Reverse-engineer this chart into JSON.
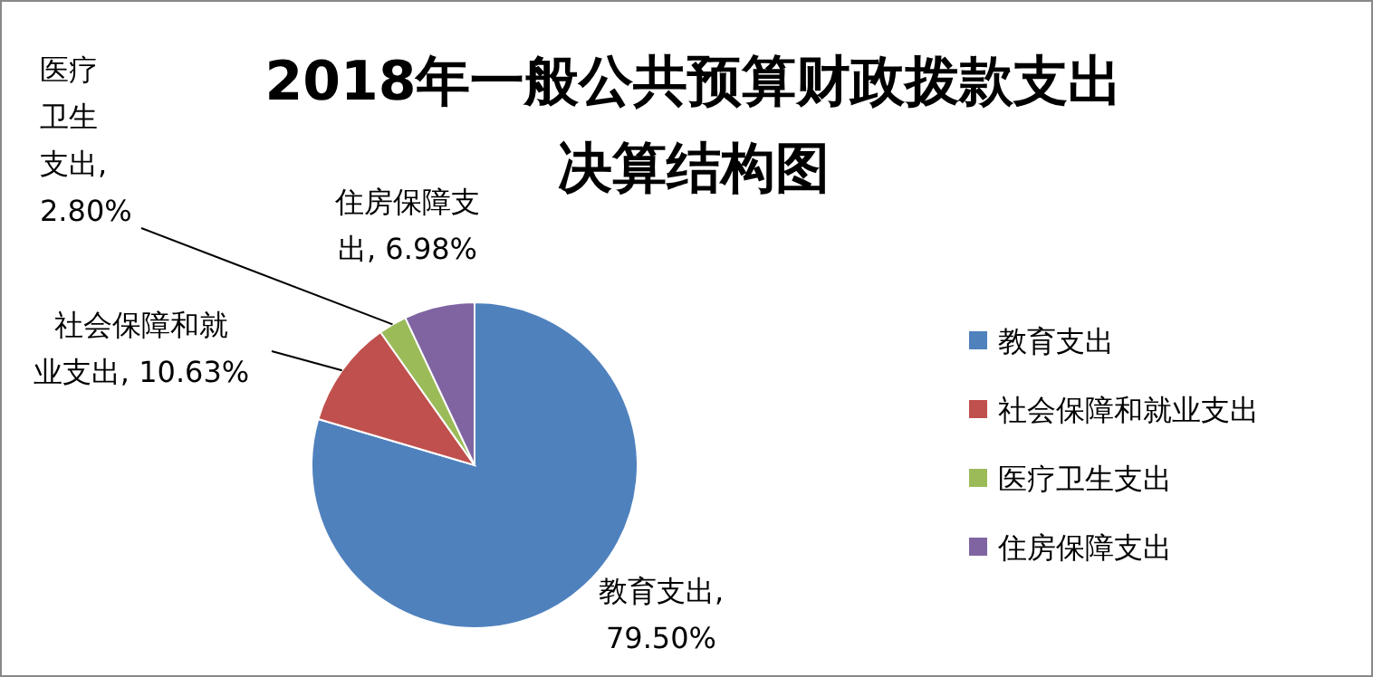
{
  "chart_data": {
    "type": "pie",
    "title": "2018年一般公共预算财政拨款支出决算结构图",
    "categories": [
      "教育支出",
      "社会保障和就业支出",
      "医疗卫生支出",
      "住房保障支出"
    ],
    "values": [
      79.5,
      10.63,
      2.8,
      6.98
    ],
    "value_labels": [
      "教育支出, 79.50%",
      "社会保障和就业支出, 10.63%",
      "医疗卫生支出, 2.80%",
      "住房保障支出, 6.98%"
    ],
    "colors": [
      "#4f81bd",
      "#c0504d",
      "#9bbb59",
      "#8064a2"
    ],
    "legend": "right"
  }
}
